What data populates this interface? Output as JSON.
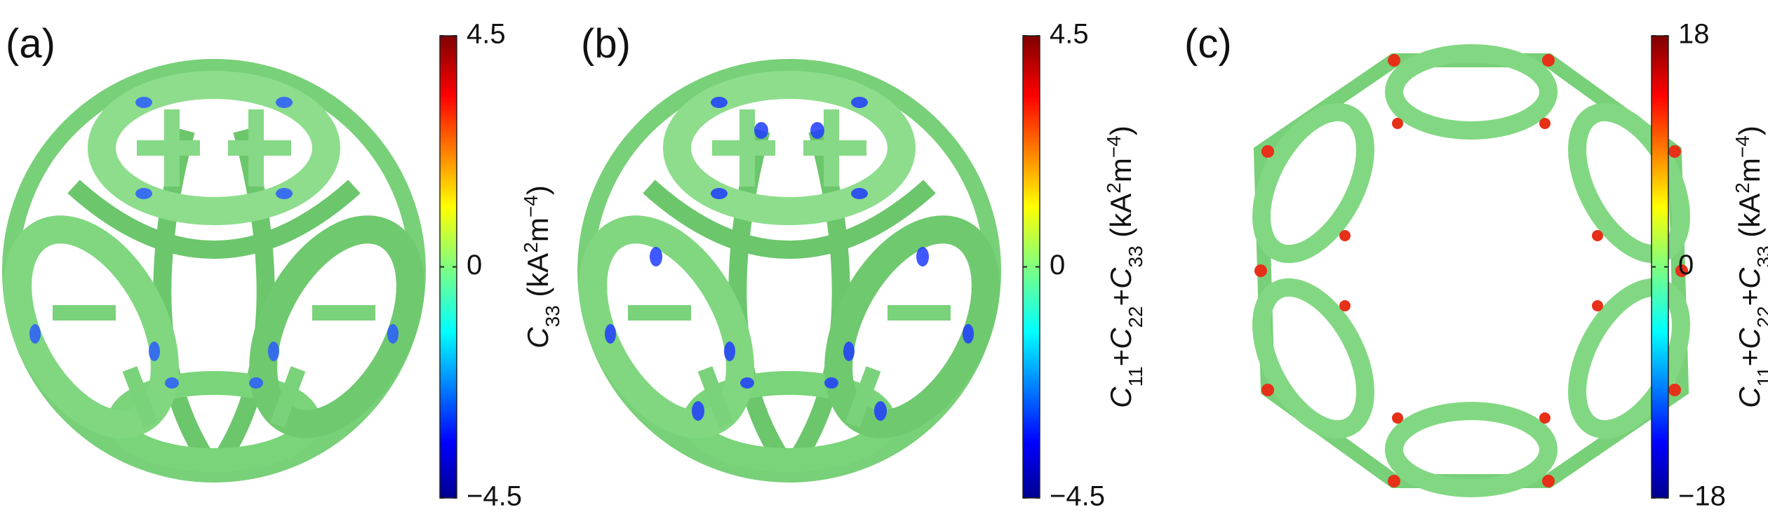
{
  "panels": [
    {
      "label": "(a)",
      "colorbar": {
        "lim": [
          -4.5,
          4.5
        ],
        "ticks": [
          {
            "value": 4.5,
            "label": "4.5"
          },
          0,
          {
            "value": -4.5,
            "label": "−4.5"
          }
        ],
        "title": [
          {
            "text": "C",
            "italic": true
          },
          {
            "text": "33",
            "shift": "sub"
          },
          {
            "text": " (kA"
          },
          {
            "text": "2",
            "shift": "super"
          },
          {
            "text": "m"
          },
          {
            "text": "−4",
            "shift": "super"
          },
          {
            "text": ")"
          }
        ]
      }
    },
    {
      "label": "(b)",
      "colorbar": {
        "lim": [
          -4.5,
          4.5
        ],
        "ticks": [
          {
            "value": 4.5,
            "label": "4.5"
          },
          0,
          {
            "value": -4.5,
            "label": "−4.5"
          }
        ],
        "title": [
          {
            "text": "C",
            "italic": true
          },
          {
            "text": "11",
            "shift": "sub"
          },
          {
            "text": "+"
          },
          {
            "text": "C",
            "italic": true
          },
          {
            "text": "22",
            "shift": "sub"
          },
          {
            "text": "+"
          },
          {
            "text": "C",
            "italic": true
          },
          {
            "text": "33",
            "shift": "sub"
          },
          {
            "text": " (kA"
          },
          {
            "text": "2",
            "shift": "super"
          },
          {
            "text": "m"
          },
          {
            "text": "−4",
            "shift": "super"
          },
          {
            "text": ")"
          }
        ]
      }
    },
    {
      "label": "(c)",
      "colorbar": {
        "lim": [
          -18,
          18
        ],
        "ticks": [
          18,
          0,
          {
            "value": -18,
            "label": "−18"
          }
        ],
        "title": [
          {
            "text": "C",
            "italic": true
          },
          {
            "text": "11",
            "shift": "sub"
          },
          {
            "text": "+"
          },
          {
            "text": "C",
            "italic": true
          },
          {
            "text": "22",
            "shift": "sub"
          },
          {
            "text": "+"
          },
          {
            "text": "C",
            "italic": true
          },
          {
            "text": "33",
            "shift": "sub"
          },
          {
            "text": " (kA"
          },
          {
            "text": "2",
            "shift": "super"
          },
          {
            "text": "m"
          },
          {
            "text": "−4",
            "shift": "super"
          },
          {
            "text": ")"
          }
        ]
      }
    }
  ]
}
